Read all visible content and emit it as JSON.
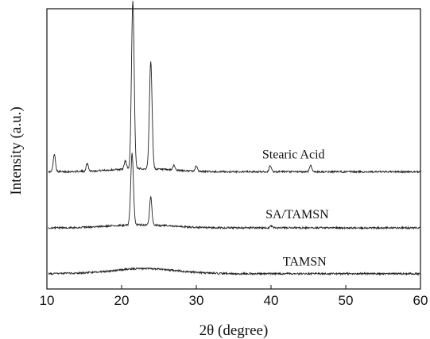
{
  "chart_data": {
    "type": "line",
    "title": "",
    "xlabel": "2θ (degree)",
    "ylabel": "Intensity (a.u.)",
    "xlim": [
      10,
      60
    ],
    "x_ticks": [
      10,
      20,
      30,
      40,
      50,
      60
    ],
    "y_ticks_labeled": false,
    "grid": false,
    "legend": "none",
    "series": [
      {
        "name": "Stearic Acid",
        "color": "#222222",
        "baseline_intensity": 20.0,
        "peaks": [
          {
            "x": 11.0,
            "y": 3.5
          },
          {
            "x": 15.4,
            "y": 1.5
          },
          {
            "x": 20.5,
            "y": 1.6
          },
          {
            "x": 21.5,
            "y": 33.0
          },
          {
            "x": 23.9,
            "y": 21.0
          },
          {
            "x": 27.0,
            "y": 1.0
          },
          {
            "x": 30.0,
            "y": 1.0
          },
          {
            "x": 39.9,
            "y": 1.2
          },
          {
            "x": 45.3,
            "y": 1.3
          }
        ]
      },
      {
        "name": "SA/TAMSN",
        "color": "#222222",
        "baseline_intensity": 9.0,
        "peaks": [
          {
            "x": 21.4,
            "y": 14.0
          },
          {
            "x": 23.9,
            "y": 5.5
          },
          {
            "x": 40.0,
            "y": 0.4
          }
        ]
      },
      {
        "name": "TAMSN",
        "color": "#222222",
        "baseline_intensity": 0.0,
        "broad_hump": {
          "center": 23.0,
          "height": 1.0,
          "width": 6.0
        }
      }
    ],
    "ylim": [
      -3,
      52
    ]
  }
}
